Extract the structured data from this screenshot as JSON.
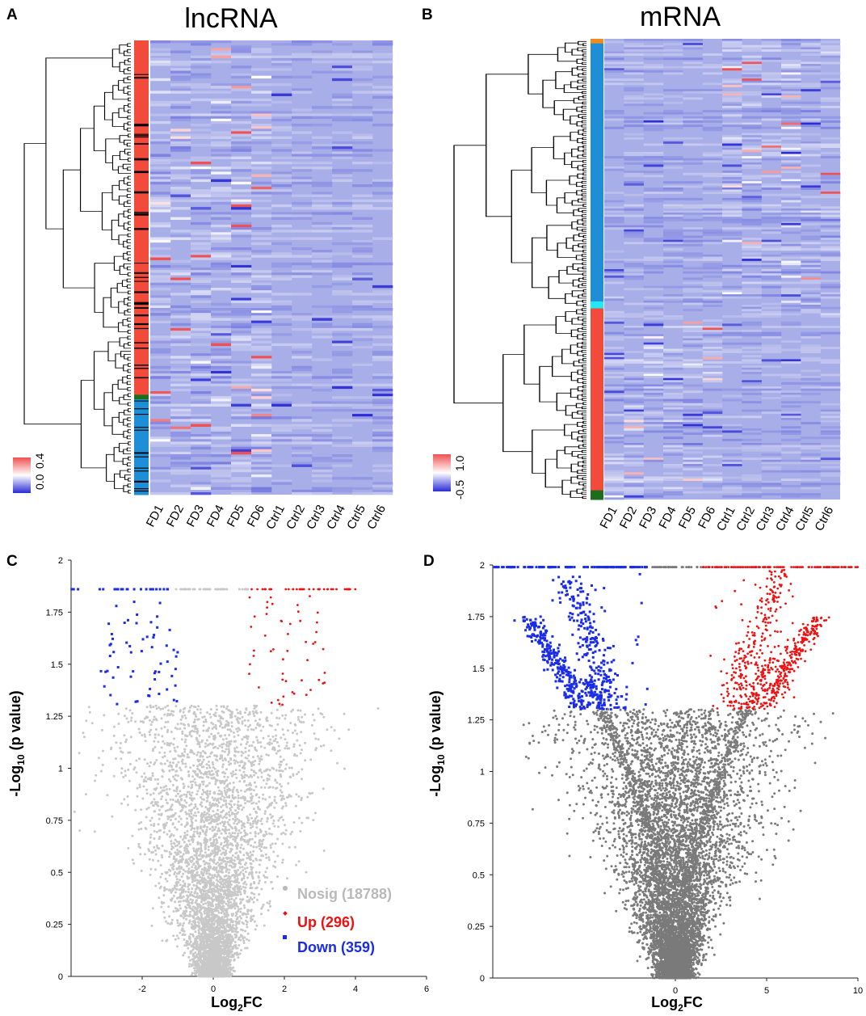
{
  "panels": {
    "A": {
      "letter": "A",
      "title": "lncRNA"
    },
    "B": {
      "letter": "B",
      "title": "mRNA"
    },
    "C": {
      "letter": "C"
    },
    "D": {
      "letter": "D"
    }
  },
  "colors": {
    "heat_low": "#2b2bd6",
    "heat_mid": "#a8aee8",
    "heat_high": "#f05050",
    "cluster_red": "#f24b3c",
    "cluster_blue": "#1e8fd6",
    "cluster_cyan": "#22e8f5",
    "cluster_green": "#1c6e1c",
    "cluster_orange": "#f08a1e",
    "nosig_light": "#c8c8c8",
    "nosig_dark": "#7a7a7a",
    "up": "#ee1111",
    "down": "#1a2ce8"
  },
  "chart_data": [
    {
      "id": "A",
      "type": "heatmap",
      "title": "lncRNA",
      "columns": [
        "FD1",
        "FD2",
        "FD3",
        "FD4",
        "FD5",
        "FD6",
        "Ctrl1",
        "Ctrl2",
        "Ctrl3",
        "Ctrl4",
        "Ctrl5",
        "Ctrl6"
      ],
      "color_scale": {
        "low": 0.0,
        "high": 0.4,
        "tick_labels": [
          "0.0",
          "0.4"
        ]
      },
      "row_clusters": [
        {
          "color": "red",
          "fraction": 0.78
        },
        {
          "color": "green",
          "fraction": 0.01
        },
        {
          "color": "blue",
          "fraction": 0.21
        }
      ]
    },
    {
      "id": "B",
      "type": "heatmap",
      "title": "mRNA",
      "columns": [
        "FD1",
        "FD2",
        "FD3",
        "FD4",
        "FD5",
        "FD6",
        "Ctrl1",
        "Ctrl2",
        "Ctrl3",
        "Ctrl4",
        "Ctrl5",
        "Ctrl6"
      ],
      "color_scale": {
        "low": -0.5,
        "high": 1.0,
        "tick_labels": [
          "-0.5",
          "1.0"
        ]
      },
      "row_clusters": [
        {
          "color": "orange",
          "fraction": 0.01
        },
        {
          "color": "blue",
          "fraction": 0.56
        },
        {
          "color": "cyan",
          "fraction": 0.015
        },
        {
          "color": "red",
          "fraction": 0.395
        },
        {
          "color": "green",
          "fraction": 0.02
        }
      ]
    },
    {
      "id": "C",
      "type": "scatter",
      "subtype": "volcano",
      "xlabel": "Log2FC",
      "ylabel": "-Log10 (p value)",
      "xlim": [
        -4,
        6
      ],
      "ylim": [
        0,
        2
      ],
      "xticks": [
        "-2",
        "0",
        "2",
        "4",
        "6"
      ],
      "yticks": [
        "0",
        "0.25",
        "0.5",
        "0.75",
        "1",
        "1.25",
        "1.5",
        "1.75",
        "2"
      ],
      "significance_threshold": 1.301,
      "cap_value": 1.86,
      "legend": [
        {
          "label": "Nosig (18788)",
          "count": 18788,
          "color": "#b9b9b9",
          "marker": "circle"
        },
        {
          "label": "Up (296)",
          "count": 296,
          "color": "#ee1111",
          "marker": "diamond"
        },
        {
          "label": "Down (359)",
          "count": 359,
          "color": "#1a2ce8",
          "marker": "square"
        }
      ]
    },
    {
      "id": "D",
      "type": "scatter",
      "subtype": "volcano",
      "xlabel": "Log2FC",
      "ylabel": "-Log10 (p value)",
      "xlim": [
        -10,
        10
      ],
      "ylim": [
        0,
        2
      ],
      "xticks": [
        "0",
        "5",
        "10"
      ],
      "yticks": [
        "0",
        "0.25",
        "0.5",
        "0.75",
        "1",
        "1.25",
        "1.5",
        "1.75",
        "2"
      ],
      "significance_threshold": 1.301,
      "cap_value": 1.99
    }
  ]
}
